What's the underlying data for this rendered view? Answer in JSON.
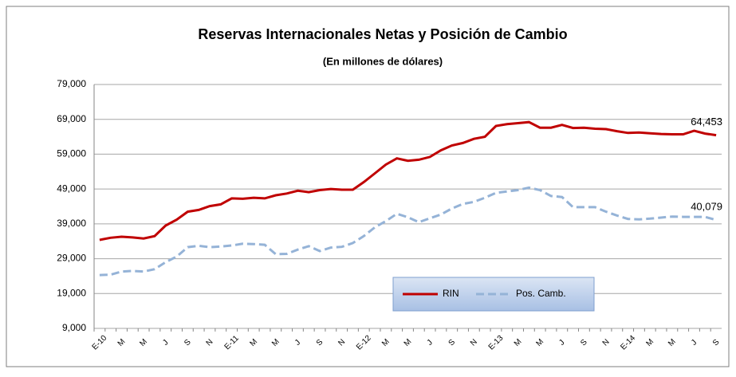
{
  "chart_data": {
    "type": "line",
    "title": "Reservas Internacionales Netas y Posición de Cambio",
    "subtitle": "(En millones de dólares)",
    "categories": [
      "E-10",
      null,
      "M",
      null,
      "M",
      null,
      "J",
      null,
      "S",
      null,
      "N",
      null,
      "E-11",
      null,
      "M",
      null,
      "M",
      null,
      "J",
      null,
      "S",
      null,
      "N",
      null,
      "E-12",
      null,
      "M",
      null,
      "M",
      null,
      "J",
      null,
      "S",
      null,
      "N",
      null,
      "E-13",
      null,
      "M",
      null,
      "M",
      null,
      "J",
      null,
      "S",
      null,
      "N",
      null,
      "E-14",
      null,
      "M",
      null,
      "M",
      null,
      "J",
      null,
      "S"
    ],
    "series": [
      {
        "name": "RIN",
        "color": "#c00000",
        "dash": false,
        "values": [
          34400,
          35000,
          35300,
          35100,
          34800,
          35500,
          38500,
          40200,
          42500,
          43000,
          44100,
          44600,
          46300,
          46200,
          46500,
          46300,
          47200,
          47700,
          48500,
          48100,
          48700,
          49000,
          48800,
          48800,
          51000,
          53500,
          56000,
          57800,
          57100,
          57400,
          58200,
          60100,
          61500,
          62200,
          63400,
          64000,
          67100,
          67600,
          67900,
          68200,
          66600,
          66600,
          67400,
          66500,
          66600,
          66300,
          66200,
          65600,
          65100,
          65200,
          65000,
          64800,
          64700,
          64700,
          65700,
          64900,
          64453
        ],
        "value_labels": [
          null,
          null,
          null,
          null,
          null,
          null,
          null,
          null,
          null,
          null,
          null,
          null,
          null,
          null,
          null,
          null,
          null,
          null,
          null,
          null,
          null,
          null,
          null,
          null,
          null,
          null,
          null,
          null,
          null,
          null,
          null,
          null,
          null,
          null,
          null,
          null,
          null,
          null,
          null,
          null,
          null,
          null,
          null,
          null,
          null,
          null,
          null,
          null,
          null,
          null,
          null,
          null,
          null,
          null,
          null,
          null,
          "64,453"
        ]
      },
      {
        "name": "Pos. Camb.",
        "color": "#95b3d7",
        "dash": true,
        "values": [
          24300,
          24400,
          25300,
          25500,
          25300,
          26000,
          28000,
          29600,
          32300,
          32700,
          32300,
          32500,
          32800,
          33300,
          33200,
          33000,
          30300,
          30400,
          31600,
          32600,
          31200,
          32200,
          32400,
          33500,
          35500,
          38000,
          39800,
          41900,
          40900,
          39500,
          40600,
          41700,
          43400,
          44700,
          45300,
          46500,
          47900,
          48300,
          48700,
          49400,
          48700,
          47000,
          46700,
          43800,
          43800,
          43800,
          42500,
          41400,
          40400,
          40300,
          40500,
          40800,
          41100,
          41000,
          41000,
          41000,
          40079
        ],
        "value_labels": [
          null,
          null,
          null,
          null,
          null,
          null,
          null,
          null,
          null,
          null,
          null,
          null,
          null,
          null,
          null,
          null,
          null,
          null,
          null,
          null,
          null,
          null,
          null,
          null,
          null,
          null,
          null,
          null,
          null,
          null,
          null,
          null,
          null,
          null,
          null,
          null,
          null,
          null,
          null,
          null,
          null,
          null,
          null,
          null,
          null,
          null,
          null,
          null,
          null,
          null,
          null,
          null,
          null,
          null,
          null,
          null,
          "40,079"
        ]
      }
    ],
    "ylim": [
      9000,
      79000
    ],
    "yticks": [
      {
        "value": 9000,
        "label": "9,000"
      },
      {
        "value": 19000,
        "label": "19,000"
      },
      {
        "value": 29000,
        "label": "29,000"
      },
      {
        "value": 39000,
        "label": "39,000"
      },
      {
        "value": 49000,
        "label": "49,000"
      },
      {
        "value": 59000,
        "label": "59,000"
      },
      {
        "value": 69000,
        "label": "69,000"
      },
      {
        "value": 79000,
        "label": "79,000"
      }
    ],
    "grid": true,
    "legend": "bottom-center"
  }
}
